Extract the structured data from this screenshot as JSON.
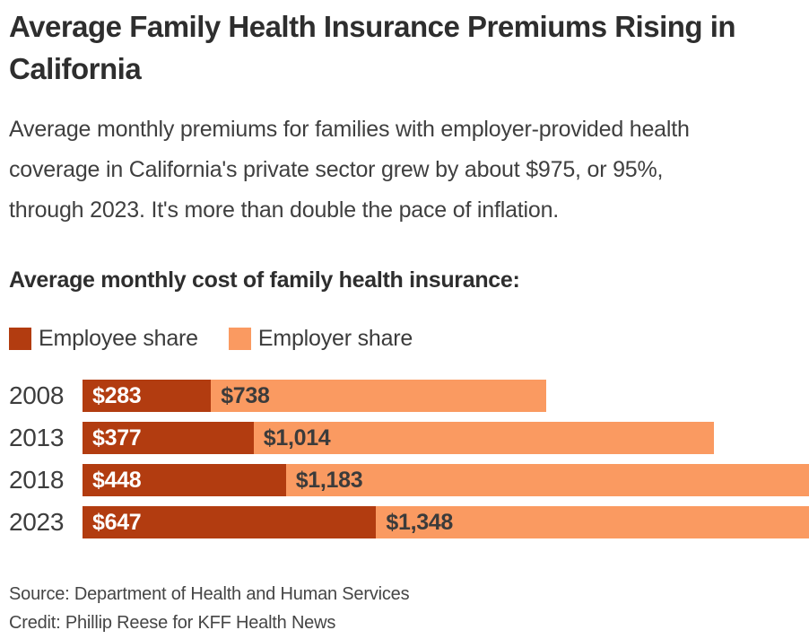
{
  "title": {
    "line1": "Average Family Health Insurance Premiums Rising in",
    "line2": "California"
  },
  "subtitle": {
    "line1": "Average monthly premiums for families with employer-provided health",
    "line2": "coverage in California's private sector grew by about $975, or 95%,",
    "line3": "through 2023. It's more than double the pace of inflation."
  },
  "chart_heading": "Average monthly cost of family health insurance:",
  "footer": {
    "source": "Source: Department of Health and Human Services",
    "credit": "Credit: Phillip Reese for KFF Health News"
  },
  "chart_data": {
    "type": "bar",
    "orientation": "horizontal",
    "stacked": true,
    "title": "Average monthly cost of family health insurance:",
    "categories": [
      "2008",
      "2013",
      "2018",
      "2023"
    ],
    "series": [
      {
        "name": "Employee share",
        "color": "#b23c10",
        "values": [
          283,
          377,
          448,
          647
        ],
        "labels": [
          "$283",
          "$377",
          "$448",
          "$647"
        ]
      },
      {
        "name": "Employer share",
        "color": "#fa9a61",
        "values": [
          738,
          1014,
          1183,
          1348
        ],
        "labels": [
          "$738",
          "$1,014",
          "$1,183",
          "$1,348"
        ]
      }
    ],
    "totals": [
      1021,
      1391,
      1631,
      1995
    ],
    "legend_position": "top",
    "grid": false,
    "axis_visible": false,
    "note": "2018 and 2023 bars extend beyond the right edge of the visible frame"
  }
}
